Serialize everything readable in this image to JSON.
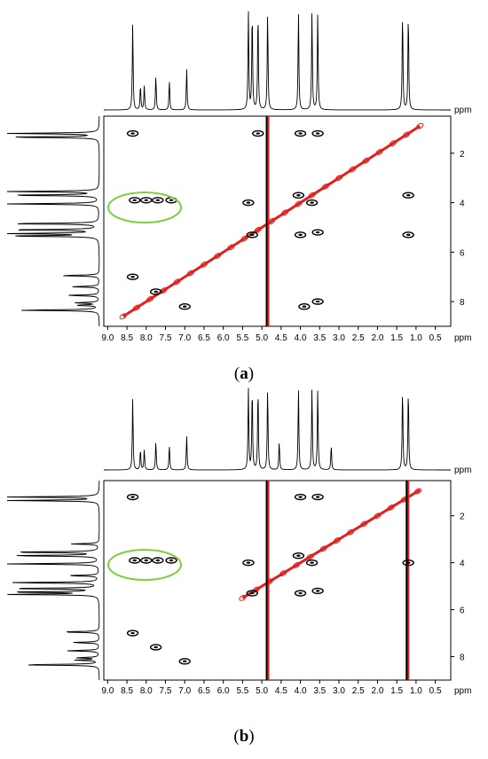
{
  "figure": {
    "panels": [
      {
        "label": "a",
        "caption_open": "(",
        "caption_close": ")",
        "x_unit": "ppm",
        "y_unit": "ppm",
        "highlight_color": "#7ccf3c"
      },
      {
        "label": "b",
        "caption_open": "(",
        "caption_close": ")",
        "x_unit": "ppm",
        "y_unit": "ppm",
        "highlight_color": "#7ccf3c"
      }
    ],
    "colors": {
      "positive": "#000000",
      "negative": "#e0201c",
      "axis": "#000000"
    }
  },
  "chart_data": [
    {
      "type": "heatmap",
      "subtype": "2D NMR contour plot with 1D projections",
      "title": "",
      "xlabel": "ppm",
      "ylabel": "ppm",
      "xlim": [
        9.1,
        0.1
      ],
      "ylim": [
        9.0,
        0.5
      ],
      "x_ticks": [
        "9.0",
        "8.5",
        "8.0",
        "7.5",
        "7.0",
        "6.5",
        "6.0",
        "5.5",
        "5.0",
        "4.5",
        "4.0",
        "3.5",
        "3.0",
        "2.5",
        "2.0",
        "1.5",
        "1.0",
        "0.5"
      ],
      "y_ticks": [
        "2",
        "4",
        "6",
        "8"
      ],
      "x_ticks_values": [
        9.0,
        8.5,
        8.0,
        7.5,
        7.0,
        6.5,
        6.0,
        5.5,
        5.0,
        4.5,
        4.0,
        3.5,
        3.0,
        2.5,
        2.0,
        1.5,
        1.0,
        0.5
      ],
      "y_ticks_values": [
        2,
        4,
        6,
        8
      ],
      "projection_peaks": [
        {
          "ppm": 8.35,
          "height": 0.88
        },
        {
          "ppm": 8.15,
          "height": 0.25
        },
        {
          "ppm": 8.05,
          "height": 0.25
        },
        {
          "ppm": 7.75,
          "height": 0.35
        },
        {
          "ppm": 7.4,
          "height": 0.3
        },
        {
          "ppm": 6.95,
          "height": 0.42
        },
        {
          "ppm": 5.35,
          "height": 1.0
        },
        {
          "ppm": 5.25,
          "height": 1.0
        },
        {
          "ppm": 5.1,
          "height": 1.0
        },
        {
          "ppm": 4.85,
          "height": 1.0
        },
        {
          "ppm": 4.05,
          "height": 1.0
        },
        {
          "ppm": 3.7,
          "height": 1.0
        },
        {
          "ppm": 3.55,
          "height": 1.0
        },
        {
          "ppm": 1.35,
          "height": 1.0
        },
        {
          "ppm": 1.2,
          "height": 1.0
        }
      ],
      "diagonal_band": {
        "from_ppm": 8.6,
        "to_ppm": 0.9
      },
      "solvent_lines_ppm": [
        4.85
      ],
      "crosspeaks": [
        {
          "x": 8.35,
          "y": 1.2
        },
        {
          "x": 8.35,
          "y": 7.0
        },
        {
          "x": 7.75,
          "y": 7.6
        },
        {
          "x": 7.0,
          "y": 8.2
        },
        {
          "x": 5.1,
          "y": 1.2
        },
        {
          "x": 5.35,
          "y": 4.0
        },
        {
          "x": 5.25,
          "y": 5.3
        },
        {
          "x": 4.0,
          "y": 1.2
        },
        {
          "x": 3.55,
          "y": 1.2
        },
        {
          "x": 4.05,
          "y": 3.7
        },
        {
          "x": 3.7,
          "y": 4.0
        },
        {
          "x": 4.0,
          "y": 5.3
        },
        {
          "x": 3.55,
          "y": 5.2
        },
        {
          "x": 3.9,
          "y": 8.2
        },
        {
          "x": 3.55,
          "y": 8.0
        },
        {
          "x": 1.2,
          "y": 3.7
        },
        {
          "x": 1.2,
          "y": 5.3
        },
        {
          "x": 8.3,
          "y": 3.9
        },
        {
          "x": 8.0,
          "y": 3.9
        },
        {
          "x": 7.7,
          "y": 3.9
        },
        {
          "x": 7.35,
          "y": 3.9
        }
      ]
    },
    {
      "type": "heatmap",
      "subtype": "2D NMR contour plot with 1D projections",
      "title": "",
      "xlabel": "ppm",
      "ylabel": "ppm",
      "xlim": [
        9.1,
        0.1
      ],
      "ylim": [
        9.0,
        0.5
      ],
      "x_ticks": [
        "9.0",
        "8.5",
        "8.0",
        "7.5",
        "7.0",
        "6.5",
        "6.0",
        "5.5",
        "5.0",
        "4.5",
        "4.0",
        "3.5",
        "3.0",
        "2.5",
        "2.0",
        "1.5",
        "1.0",
        "0.5"
      ],
      "y_ticks": [
        "2",
        "4",
        "6",
        "8"
      ],
      "x_ticks_values": [
        9.0,
        8.5,
        8.0,
        7.5,
        7.0,
        6.5,
        6.0,
        5.5,
        5.0,
        4.5,
        4.0,
        3.5,
        3.0,
        2.5,
        2.0,
        1.5,
        1.0,
        0.5
      ],
      "y_ticks_values": [
        2,
        4,
        6,
        8
      ],
      "projection_peaks": [
        {
          "ppm": 8.35,
          "height": 0.88
        },
        {
          "ppm": 8.15,
          "height": 0.25
        },
        {
          "ppm": 8.05,
          "height": 0.25
        },
        {
          "ppm": 7.75,
          "height": 0.35
        },
        {
          "ppm": 7.4,
          "height": 0.3
        },
        {
          "ppm": 6.95,
          "height": 0.42
        },
        {
          "ppm": 5.35,
          "height": 1.0
        },
        {
          "ppm": 5.25,
          "height": 1.0
        },
        {
          "ppm": 5.1,
          "height": 1.0
        },
        {
          "ppm": 4.85,
          "height": 1.0
        },
        {
          "ppm": 4.55,
          "height": 0.35
        },
        {
          "ppm": 4.05,
          "height": 1.0
        },
        {
          "ppm": 3.7,
          "height": 1.0
        },
        {
          "ppm": 3.55,
          "height": 1.0
        },
        {
          "ppm": 3.2,
          "height": 0.3
        },
        {
          "ppm": 1.35,
          "height": 1.0
        },
        {
          "ppm": 1.2,
          "height": 1.0
        }
      ],
      "diagonal_band": {
        "from_ppm": 5.5,
        "to_ppm": 0.9
      },
      "solvent_lines_ppm": [
        4.85,
        1.22
      ],
      "crosspeaks": [
        {
          "x": 8.35,
          "y": 1.2
        },
        {
          "x": 8.35,
          "y": 7.0
        },
        {
          "x": 7.75,
          "y": 7.6
        },
        {
          "x": 7.0,
          "y": 8.2
        },
        {
          "x": 5.35,
          "y": 4.0
        },
        {
          "x": 5.25,
          "y": 5.3
        },
        {
          "x": 4.0,
          "y": 1.2
        },
        {
          "x": 3.55,
          "y": 1.2
        },
        {
          "x": 4.05,
          "y": 3.7
        },
        {
          "x": 3.7,
          "y": 4.0
        },
        {
          "x": 4.0,
          "y": 5.3
        },
        {
          "x": 3.55,
          "y": 5.2
        },
        {
          "x": 1.2,
          "y": 4.0
        },
        {
          "x": 8.3,
          "y": 3.9
        },
        {
          "x": 8.0,
          "y": 3.9
        },
        {
          "x": 7.7,
          "y": 3.9
        },
        {
          "x": 7.35,
          "y": 3.9
        }
      ]
    }
  ]
}
